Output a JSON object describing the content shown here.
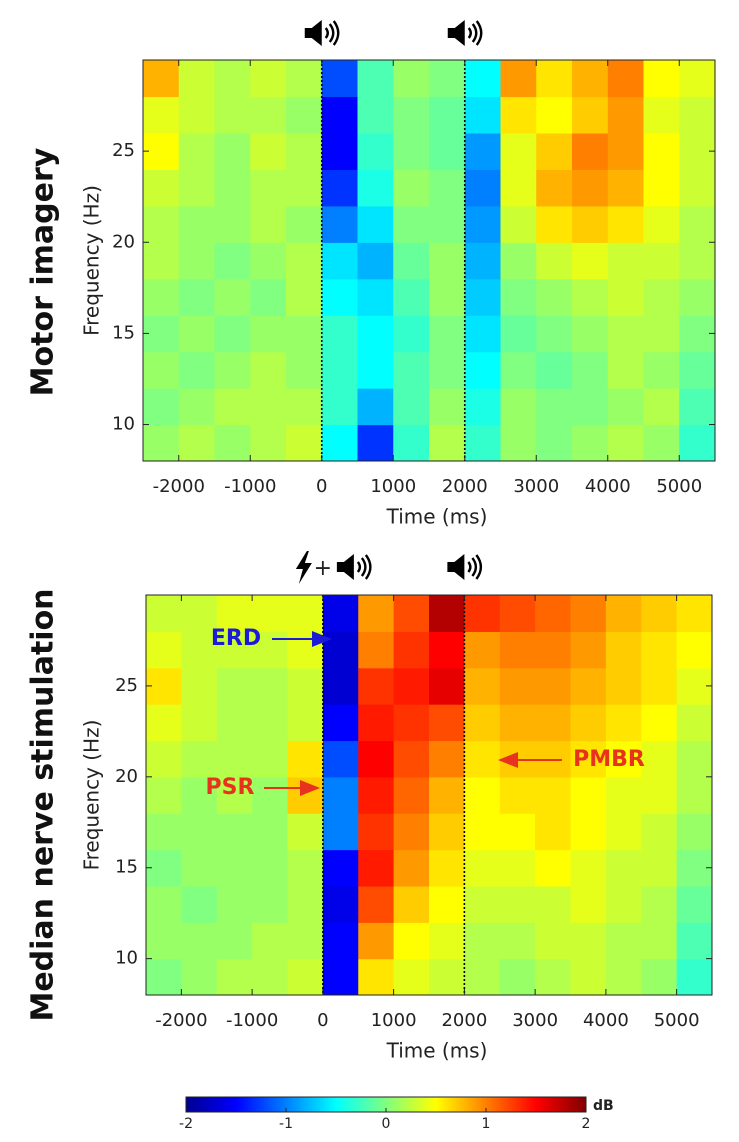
{
  "chart_data": [
    {
      "type": "heatmap",
      "title": "Motor imagery",
      "xlabel": "Time (ms)",
      "ylabel": "Frequency (Hz)",
      "xlim": [
        -2500,
        5500
      ],
      "ylim": [
        8,
        30
      ],
      "xticks": [
        -2000,
        -1000,
        0,
        1000,
        2000,
        3000,
        4000,
        5000
      ],
      "yticks": [
        10,
        15,
        20,
        25
      ],
      "events": [
        0,
        2000
      ],
      "x_bins": [
        -2500,
        -2000,
        -1500,
        -1000,
        -500,
        0,
        500,
        1000,
        1500,
        2000,
        2500,
        3000,
        3500,
        4000,
        4500,
        5000,
        5500
      ],
      "y_bins": [
        8,
        10,
        12,
        14,
        16,
        18,
        20,
        22,
        24,
        26,
        28,
        30
      ],
      "z": [
        [
          0.1,
          0.2,
          0.1,
          0.2,
          0.3,
          -0.5,
          -1.3,
          -0.3,
          0.2,
          -0.3,
          0.1,
          0.0,
          0.1,
          0.2,
          0.1,
          -0.3
        ],
        [
          0.0,
          0.1,
          0.2,
          0.2,
          0.2,
          -0.3,
          -0.8,
          -0.2,
          0.1,
          -0.4,
          0.1,
          0.0,
          0.0,
          0.1,
          0.2,
          -0.2
        ],
        [
          0.1,
          0.0,
          0.1,
          0.2,
          0.1,
          -0.3,
          -0.5,
          -0.2,
          0.0,
          -0.5,
          0.0,
          -0.1,
          0.0,
          0.2,
          0.1,
          -0.1
        ],
        [
          0.0,
          0.1,
          0.0,
          0.1,
          0.1,
          -0.3,
          -0.5,
          -0.3,
          0.0,
          -0.6,
          -0.1,
          0.0,
          0.1,
          0.2,
          0.2,
          0.0
        ],
        [
          0.1,
          0.0,
          0.1,
          0.0,
          0.2,
          -0.5,
          -0.6,
          -0.2,
          0.1,
          -0.7,
          0.0,
          0.1,
          0.2,
          0.3,
          0.2,
          0.1
        ],
        [
          0.2,
          0.1,
          0.0,
          0.1,
          0.2,
          -0.6,
          -0.8,
          -0.1,
          0.1,
          -0.8,
          0.1,
          0.3,
          0.4,
          0.3,
          0.3,
          0.2
        ],
        [
          0.2,
          0.1,
          0.1,
          0.2,
          0.1,
          -1.0,
          -0.6,
          0.0,
          0.0,
          -0.9,
          0.3,
          0.6,
          0.7,
          0.6,
          0.4,
          0.2
        ],
        [
          0.3,
          0.2,
          0.1,
          0.2,
          0.2,
          -1.3,
          -0.4,
          0.1,
          0.0,
          -1.0,
          0.4,
          0.8,
          0.9,
          0.8,
          0.5,
          0.3
        ],
        [
          0.5,
          0.2,
          0.1,
          0.3,
          0.2,
          -1.5,
          -0.3,
          0.0,
          -0.1,
          -0.9,
          0.4,
          0.7,
          1.0,
          0.9,
          0.5,
          0.3
        ],
        [
          0.4,
          0.3,
          0.2,
          0.2,
          0.1,
          -1.5,
          -0.2,
          0.0,
          -0.1,
          -0.6,
          0.6,
          0.5,
          0.7,
          0.9,
          0.4,
          0.3
        ],
        [
          0.8,
          0.3,
          0.2,
          0.3,
          0.2,
          -1.2,
          -0.2,
          0.1,
          0.0,
          -0.5,
          0.9,
          0.6,
          0.8,
          1.0,
          0.5,
          0.4
        ]
      ]
    },
    {
      "type": "heatmap",
      "title": "Median nerve stimulation",
      "xlabel": "Time (ms)",
      "ylabel": "Frequency (Hz)",
      "xlim": [
        -2500,
        5500
      ],
      "ylim": [
        8,
        30
      ],
      "xticks": [
        -2000,
        -1000,
        0,
        1000,
        2000,
        3000,
        4000,
        5000
      ],
      "yticks": [
        10,
        15,
        20,
        25
      ],
      "events": [
        0,
        2000
      ],
      "event_join": "+",
      "annotations": [
        {
          "text": "ERD",
          "color": "#1c1cd6"
        },
        {
          "text": "PSR",
          "color": "#e8321e"
        },
        {
          "text": "PMBR",
          "color": "#e8321e"
        }
      ],
      "x_bins": [
        -2500,
        -2000,
        -1500,
        -1000,
        -500,
        0,
        500,
        1000,
        1500,
        2000,
        2500,
        3000,
        3500,
        4000,
        4500,
        5000,
        5500
      ],
      "y_bins": [
        8,
        10,
        12,
        14,
        16,
        18,
        20,
        22,
        24,
        26,
        28,
        30
      ],
      "z": [
        [
          0.0,
          0.1,
          0.2,
          0.2,
          0.3,
          -1.5,
          0.6,
          0.4,
          0.3,
          0.2,
          0.1,
          0.2,
          0.3,
          0.2,
          0.1,
          -0.3
        ],
        [
          0.1,
          0.1,
          0.1,
          0.2,
          0.2,
          -1.5,
          0.9,
          0.5,
          0.4,
          0.2,
          0.2,
          0.3,
          0.3,
          0.2,
          0.2,
          -0.2
        ],
        [
          0.1,
          0.0,
          0.1,
          0.1,
          0.2,
          -1.6,
          1.2,
          0.7,
          0.5,
          0.3,
          0.3,
          0.3,
          0.4,
          0.3,
          0.2,
          -0.1
        ],
        [
          0.0,
          0.1,
          0.1,
          0.1,
          0.2,
          -1.5,
          1.4,
          0.9,
          0.6,
          0.4,
          0.4,
          0.5,
          0.4,
          0.3,
          0.3,
          0.0
        ],
        [
          0.1,
          0.1,
          0.1,
          0.1,
          0.3,
          -1.0,
          1.3,
          1.0,
          0.7,
          0.5,
          0.5,
          0.6,
          0.5,
          0.4,
          0.3,
          0.1
        ],
        [
          0.2,
          0.1,
          0.2,
          0.1,
          0.7,
          -1.0,
          1.4,
          1.1,
          0.8,
          0.5,
          0.6,
          0.6,
          0.5,
          0.4,
          0.4,
          0.2
        ],
        [
          0.3,
          0.2,
          0.2,
          0.2,
          0.6,
          -1.2,
          1.5,
          1.2,
          1.0,
          0.6,
          0.7,
          0.7,
          0.6,
          0.5,
          0.4,
          0.2
        ],
        [
          0.4,
          0.3,
          0.2,
          0.2,
          0.3,
          -1.5,
          1.4,
          1.3,
          1.2,
          0.7,
          0.8,
          0.8,
          0.7,
          0.6,
          0.5,
          0.3
        ],
        [
          0.6,
          0.3,
          0.2,
          0.2,
          0.3,
          -1.7,
          1.3,
          1.4,
          1.6,
          0.8,
          0.9,
          0.9,
          0.8,
          0.7,
          0.6,
          0.4
        ],
        [
          0.4,
          0.3,
          0.3,
          0.3,
          0.4,
          -1.7,
          1.0,
          1.3,
          1.5,
          0.9,
          1.0,
          1.0,
          0.9,
          0.7,
          0.6,
          0.5
        ],
        [
          0.3,
          0.3,
          0.4,
          0.4,
          0.4,
          -1.6,
          0.9,
          1.2,
          1.8,
          1.3,
          1.2,
          1.1,
          1.0,
          0.8,
          0.7,
          0.6
        ]
      ]
    }
  ],
  "colorbar": {
    "label": "dB",
    "lim": [
      -2,
      2
    ],
    "ticks": [
      -2,
      -1,
      0,
      1,
      2
    ]
  }
}
